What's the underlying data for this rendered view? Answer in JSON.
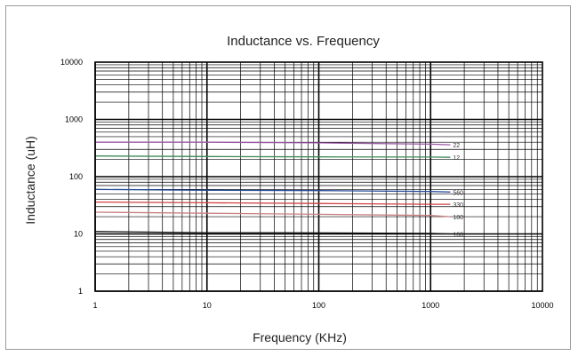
{
  "chart_data": {
    "type": "line",
    "title": "Inductance vs. Frequency",
    "xlabel": "Frequency (KHz)",
    "ylabel": "Inductance (uH)",
    "x_scale": "log",
    "y_scale": "log",
    "xlim": [
      1,
      10000
    ],
    "ylim": [
      1,
      10000
    ],
    "x_ticks": [
      "1",
      "10",
      "100",
      "1000",
      "10000"
    ],
    "y_ticks": [
      "1",
      "10",
      "100",
      "1000",
      "10000"
    ],
    "grid": true,
    "series": [
      {
        "name": "22",
        "color": "#9b59a6",
        "x": [
          1,
          10,
          100,
          1000,
          1500
        ],
        "y": [
          400,
          400,
          390,
          370,
          360
        ]
      },
      {
        "name": "12",
        "color": "#3f8a55",
        "x": [
          1,
          10,
          100,
          1000,
          1500
        ],
        "y": [
          230,
          225,
          222,
          220,
          218
        ]
      },
      {
        "name": "560",
        "color": "#2b4f9a",
        "x": [
          1,
          10,
          100,
          1000,
          1500
        ],
        "y": [
          60,
          58,
          57,
          55,
          54
        ]
      },
      {
        "name": "330",
        "color": "#d04040",
        "x": [
          1,
          10,
          100,
          1000,
          1500
        ],
        "y": [
          36,
          35,
          34,
          33,
          33
        ]
      },
      {
        "name": "180",
        "color": "#c88080",
        "x": [
          1,
          10,
          100,
          1000,
          1500
        ],
        "y": [
          24,
          23,
          22,
          21,
          20
        ]
      },
      {
        "name": "100",
        "color": "#111111",
        "x": [
          1,
          10,
          50,
          1000,
          1500
        ],
        "y": [
          11,
          10.5,
          10.5,
          10.2,
          10
        ]
      }
    ]
  }
}
